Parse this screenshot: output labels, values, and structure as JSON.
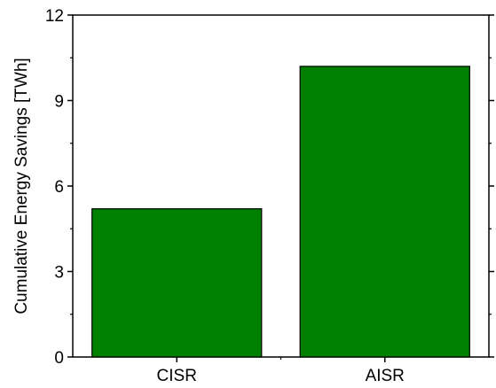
{
  "chart_data": {
    "type": "bar",
    "title": "",
    "xlabel": "",
    "ylabel": "Cumulative Energy Savings [TWh]",
    "categories": [
      "CISR",
      "AISR"
    ],
    "values": [
      5.2,
      10.2
    ],
    "ylim": [
      0,
      12
    ],
    "yticks": [
      0,
      3,
      6,
      9,
      12
    ],
    "ytick_labels": [
      "0",
      "3",
      "6",
      "9",
      "12"
    ],
    "grid": false,
    "legend": "none",
    "colors": {
      "bar_fill": "#008000",
      "bar_stroke": "#000000",
      "axis": "#000000"
    }
  }
}
